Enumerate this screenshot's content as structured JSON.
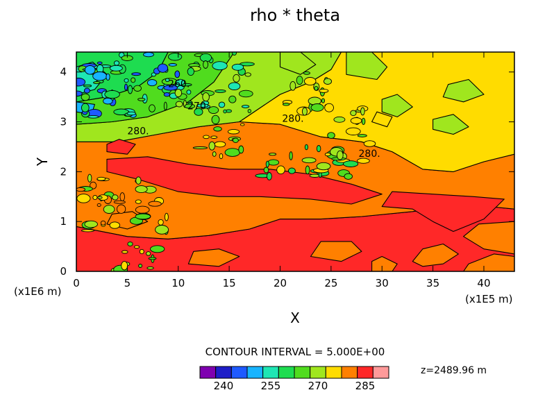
{
  "chart_data": {
    "type": "heatmap",
    "title": "rho * theta",
    "xlabel": "X",
    "ylabel": "Y",
    "x_unit": "(x1E5 m)",
    "y_unit": "(x1E6 m)",
    "xlim": [
      0,
      43
    ],
    "ylim": [
      0,
      4.4
    ],
    "x_ticks": [
      0,
      5,
      10,
      15,
      20,
      25,
      30,
      35,
      40
    ],
    "y_ticks": [
      0,
      1,
      2,
      3,
      4
    ],
    "contour_interval": "CONTOUR INTERVAL = 5.000E+00",
    "z_level": "z=2489.96 m",
    "contour_labels": [
      {
        "text": "260.",
        "x": 9.0,
        "y": 3.7
      },
      {
        "text": "270.",
        "x": 10.9,
        "y": 3.25
      },
      {
        "text": "280.",
        "x": 5.0,
        "y": 2.75
      },
      {
        "text": "280.",
        "x": 20.2,
        "y": 3.0
      },
      {
        "text": "280.",
        "x": 27.7,
        "y": 2.3
      }
    ],
    "regions": [
      {
        "level": 285,
        "points": [
          [
            0,
            0
          ],
          [
            43,
            0
          ],
          [
            43,
            0.35
          ],
          [
            40,
            0.45
          ],
          [
            38,
            0.7
          ],
          [
            39.5,
            0.95
          ],
          [
            43,
            1.0
          ],
          [
            43,
            1.25
          ],
          [
            38,
            1.35
          ],
          [
            33,
            1.2
          ],
          [
            28,
            1.1
          ],
          [
            24,
            1.05
          ],
          [
            20,
            1.05
          ],
          [
            17,
            0.85
          ],
          [
            13,
            0.72
          ],
          [
            9,
            0.65
          ],
          [
            5,
            0.7
          ],
          [
            0,
            0.9
          ]
        ]
      },
      {
        "level": 280,
        "points": [
          [
            0,
            0.9
          ],
          [
            5,
            0.7
          ],
          [
            9,
            0.65
          ],
          [
            13,
            0.72
          ],
          [
            17,
            0.85
          ],
          [
            20,
            1.05
          ],
          [
            24,
            1.05
          ],
          [
            28,
            1.1
          ],
          [
            33,
            1.2
          ],
          [
            38,
            1.35
          ],
          [
            43,
            1.25
          ],
          [
            43,
            2.35
          ],
          [
            40,
            2.2
          ],
          [
            37,
            2.0
          ],
          [
            34,
            2.05
          ],
          [
            31,
            2.4
          ],
          [
            28,
            2.6
          ],
          [
            24,
            2.7
          ],
          [
            20,
            2.95
          ],
          [
            16,
            3.0
          ],
          [
            12,
            2.9
          ],
          [
            8,
            2.75
          ],
          [
            4,
            2.6
          ],
          [
            0,
            2.6
          ]
        ]
      },
      {
        "level": 275,
        "points": [
          [
            43,
            2.35
          ],
          [
            40,
            2.2
          ],
          [
            37,
            2.0
          ],
          [
            34,
            2.05
          ],
          [
            31,
            2.4
          ],
          [
            28,
            2.6
          ],
          [
            24,
            2.7
          ],
          [
            20,
            2.95
          ],
          [
            16,
            3.0
          ],
          [
            20,
            3.55
          ],
          [
            23,
            3.8
          ],
          [
            25,
            4.05
          ],
          [
            26,
            4.4
          ],
          [
            43,
            4.4
          ]
        ]
      },
      {
        "level": 270,
        "points": [
          [
            0,
            2.6
          ],
          [
            4,
            2.6
          ],
          [
            8,
            2.75
          ],
          [
            12,
            2.9
          ],
          [
            16,
            3.0
          ],
          [
            20,
            3.55
          ],
          [
            23,
            3.8
          ],
          [
            25,
            4.05
          ],
          [
            26,
            4.4
          ],
          [
            15.5,
            4.4
          ],
          [
            13.5,
            3.8
          ],
          [
            11,
            3.4
          ],
          [
            7,
            3.1
          ],
          [
            3.5,
            3.0
          ],
          [
            0,
            2.95
          ]
        ]
      },
      {
        "level": 265,
        "points": [
          [
            0,
            2.95
          ],
          [
            3.5,
            3.0
          ],
          [
            7,
            3.1
          ],
          [
            11,
            3.4
          ],
          [
            13.5,
            3.8
          ],
          [
            15.5,
            4.4
          ],
          [
            9,
            4.4
          ],
          [
            8,
            4.0
          ],
          [
            6,
            3.7
          ],
          [
            3,
            3.5
          ],
          [
            0,
            3.4
          ]
        ]
      },
      {
        "level": 260,
        "points": [
          [
            0,
            3.4
          ],
          [
            3,
            3.5
          ],
          [
            6,
            3.7
          ],
          [
            8,
            4.0
          ],
          [
            9,
            4.4
          ],
          [
            0,
            4.4
          ]
        ]
      },
      {
        "level": 255,
        "points": [
          [
            0,
            3.55
          ],
          [
            1.8,
            3.65
          ],
          [
            3,
            3.95
          ],
          [
            1.6,
            4.2
          ],
          [
            0,
            4.1
          ]
        ]
      },
      {
        "level": 250,
        "points": [
          [
            0,
            3.2
          ],
          [
            1.5,
            3.15
          ],
          [
            1.8,
            3.35
          ],
          [
            0,
            3.4
          ]
        ]
      },
      {
        "level": 285,
        "points": [
          [
            3,
            2.25
          ],
          [
            7,
            2.3
          ],
          [
            11,
            2.15
          ],
          [
            15,
            2.05
          ],
          [
            19,
            2.05
          ],
          [
            23,
            1.95
          ],
          [
            27,
            1.75
          ],
          [
            30,
            1.55
          ],
          [
            27,
            1.35
          ],
          [
            23,
            1.45
          ],
          [
            18,
            1.5
          ],
          [
            14,
            1.5
          ],
          [
            10,
            1.6
          ],
          [
            6,
            1.85
          ],
          [
            3,
            2.0
          ]
        ]
      },
      {
        "level": 285,
        "points": [
          [
            31,
            1.6
          ],
          [
            35,
            1.55
          ],
          [
            39,
            1.5
          ],
          [
            42,
            1.45
          ],
          [
            40,
            1.05
          ],
          [
            37,
            0.8
          ],
          [
            35,
            1.0
          ],
          [
            33,
            1.25
          ],
          [
            30,
            1.3
          ]
        ]
      },
      {
        "level": 285,
        "points": [
          [
            3,
            2.4
          ],
          [
            5,
            2.35
          ],
          [
            5.8,
            2.55
          ],
          [
            4.2,
            2.65
          ],
          [
            3,
            2.55
          ]
        ]
      },
      {
        "level": 280,
        "points": [
          [
            33,
            0.2
          ],
          [
            34,
            0.1
          ],
          [
            36,
            0.15
          ],
          [
            37.5,
            0.35
          ],
          [
            36,
            0.55
          ],
          [
            34,
            0.45
          ]
        ]
      },
      {
        "level": 280,
        "points": [
          [
            23,
            0.3
          ],
          [
            26,
            0.2
          ],
          [
            28,
            0.4
          ],
          [
            27,
            0.6
          ],
          [
            24,
            0.6
          ]
        ]
      },
      {
        "level": 280,
        "points": [
          [
            11,
            0.15
          ],
          [
            14,
            0.1
          ],
          [
            16,
            0.3
          ],
          [
            14,
            0.45
          ],
          [
            11.5,
            0.4
          ]
        ]
      },
      {
        "level": 280,
        "points": [
          [
            29,
            0.0
          ],
          [
            31,
            0.0
          ],
          [
            31.5,
            0.15
          ],
          [
            30,
            0.3
          ],
          [
            29,
            0.2
          ]
        ]
      },
      {
        "level": 280,
        "points": [
          [
            38,
            0.0
          ],
          [
            43,
            0.0
          ],
          [
            43,
            0.3
          ],
          [
            41,
            0.35
          ],
          [
            38.5,
            0.15
          ]
        ]
      },
      {
        "level": 270,
        "points": [
          [
            30,
            3.2
          ],
          [
            31.5,
            3.1
          ],
          [
            33,
            3.3
          ],
          [
            31.5,
            3.55
          ],
          [
            30,
            3.45
          ]
        ]
      },
      {
        "level": 270,
        "points": [
          [
            36,
            3.5
          ],
          [
            38,
            3.4
          ],
          [
            40,
            3.55
          ],
          [
            38.5,
            3.85
          ],
          [
            36.5,
            3.75
          ]
        ]
      },
      {
        "level": 270,
        "points": [
          [
            35,
            2.85
          ],
          [
            37,
            2.75
          ],
          [
            38.5,
            2.9
          ],
          [
            37,
            3.15
          ],
          [
            35,
            3.05
          ]
        ]
      },
      {
        "level": 270,
        "points": [
          [
            26.5,
            3.95
          ],
          [
            29.5,
            3.85
          ],
          [
            30.5,
            4.1
          ],
          [
            29,
            4.4
          ],
          [
            26.5,
            4.4
          ]
        ]
      },
      {
        "level": 270,
        "points": [
          [
            20,
            4.1
          ],
          [
            22,
            3.95
          ],
          [
            23.5,
            4.15
          ],
          [
            22,
            4.4
          ],
          [
            20,
            4.4
          ]
        ]
      },
      {
        "level": 275,
        "points": [
          [
            29,
            3.0
          ],
          [
            30.5,
            2.9
          ],
          [
            31,
            3.1
          ],
          [
            29.5,
            3.2
          ]
        ]
      },
      {
        "level": 280,
        "points": [
          [
            3,
            0.95
          ],
          [
            5,
            0.85
          ],
          [
            7,
            1.0
          ],
          [
            5.5,
            1.2
          ],
          [
            3.5,
            1.15
          ]
        ]
      }
    ],
    "colorbar": {
      "levels": [
        235,
        240,
        245,
        250,
        255,
        260,
        265,
        270,
        275,
        280,
        285,
        290
      ],
      "tick_labels": [
        "240",
        "255",
        "270",
        "285"
      ],
      "colors": [
        "#7f00b0",
        "#1e1ec8",
        "#1e5aff",
        "#18b4ff",
        "#1ee6b4",
        "#1edc50",
        "#50dc1e",
        "#a0e61e",
        "#ffdc00",
        "#ff8000",
        "#ff2828",
        "#ff9a9a"
      ]
    }
  }
}
